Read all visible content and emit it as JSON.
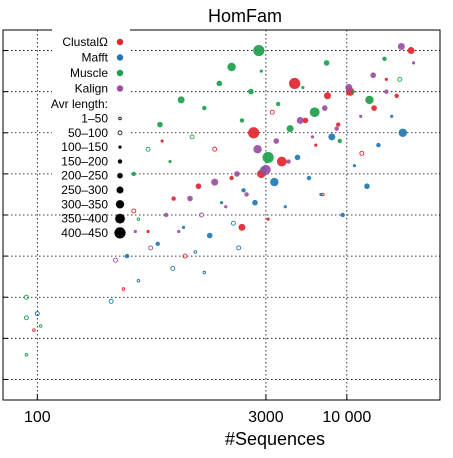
{
  "chart_data": {
    "type": "scatter",
    "title": "HomFam",
    "xlabel": "#Sequences",
    "ylabel": "",
    "x_scale": "log",
    "xlim": [
      60,
      40000
    ],
    "ylim": [
      0.5,
      9.5
    ],
    "x_ticks": [
      {
        "value": 100,
        "label": "100"
      },
      {
        "value": 3000,
        "label": "3000"
      },
      {
        "value": 10000,
        "label": "10 000"
      }
    ],
    "grid": true,
    "legend_placement": "top-left",
    "legend": {
      "methods": [
        {
          "name": "ClustalΩ",
          "color": "#e0262e"
        },
        {
          "name": "Mafft",
          "color": "#1f78b4"
        },
        {
          "name": "Muscle",
          "color": "#1aa14a"
        },
        {
          "name": "Kalign",
          "color": "#9b4ea0"
        }
      ],
      "size_title": "Avr length:",
      "size_bins": [
        "1–50",
        "50–100",
        "100–150",
        "150–200",
        "200–250",
        "250–300",
        "300–350",
        "350–400",
        "400–450"
      ]
    },
    "series": [
      {
        "name": "ClustalΩ",
        "color": "#e0262e",
        "points": [
          {
            "x": 95,
            "y": 2.2,
            "bin": 1
          },
          {
            "x": 360,
            "y": 3.2,
            "bin": 1
          },
          {
            "x": 420,
            "y": 5.1,
            "bin": 2
          },
          {
            "x": 520,
            "y": 4.6,
            "bin": 3
          },
          {
            "x": 640,
            "y": 6.8,
            "bin": 3
          },
          {
            "x": 760,
            "y": 5.4,
            "bin": 4
          },
          {
            "x": 900,
            "y": 4.0,
            "bin": 2
          },
          {
            "x": 1100,
            "y": 5.7,
            "bin": 5
          },
          {
            "x": 1400,
            "y": 6.6,
            "bin": 2
          },
          {
            "x": 1800,
            "y": 5.9,
            "bin": 4
          },
          {
            "x": 2100,
            "y": 4.7,
            "bin": 6
          },
          {
            "x": 2500,
            "y": 7.0,
            "bin": 9
          },
          {
            "x": 2800,
            "y": 6.0,
            "bin": 7
          },
          {
            "x": 3300,
            "y": 7.5,
            "bin": 2
          },
          {
            "x": 3800,
            "y": 6.3,
            "bin": 8
          },
          {
            "x": 4600,
            "y": 8.2,
            "bin": 9
          },
          {
            "x": 5400,
            "y": 7.3,
            "bin": 5
          },
          {
            "x": 6300,
            "y": 6.7,
            "bin": 3
          },
          {
            "x": 7500,
            "y": 7.9,
            "bin": 6
          },
          {
            "x": 8800,
            "y": 7.2,
            "bin": 4
          },
          {
            "x": 10500,
            "y": 8.0,
            "bin": 7
          },
          {
            "x": 12500,
            "y": 6.5,
            "bin": 2
          },
          {
            "x": 15000,
            "y": 7.6,
            "bin": 5
          },
          {
            "x": 18000,
            "y": 8.3,
            "bin": 3
          },
          {
            "x": 21000,
            "y": 7.9,
            "bin": 4
          },
          {
            "x": 26000,
            "y": 9.0,
            "bin": 6
          },
          {
            "x": 7000,
            "y": 5.5,
            "bin": 1
          },
          {
            "x": 3100,
            "y": 4.9,
            "bin": 3
          }
        ]
      },
      {
        "name": "Mafft",
        "color": "#1f78b4",
        "points": [
          {
            "x": 100,
            "y": 2.6,
            "bin": 2
          },
          {
            "x": 300,
            "y": 2.9,
            "bin": 2
          },
          {
            "x": 380,
            "y": 4.0,
            "bin": 4
          },
          {
            "x": 450,
            "y": 3.4,
            "bin": 1
          },
          {
            "x": 600,
            "y": 4.3,
            "bin": 4
          },
          {
            "x": 750,
            "y": 3.7,
            "bin": 2
          },
          {
            "x": 880,
            "y": 4.7,
            "bin": 3
          },
          {
            "x": 1050,
            "y": 4.1,
            "bin": 1
          },
          {
            "x": 1300,
            "y": 4.5,
            "bin": 5
          },
          {
            "x": 1550,
            "y": 5.3,
            "bin": 3
          },
          {
            "x": 1850,
            "y": 4.8,
            "bin": 2
          },
          {
            "x": 2150,
            "y": 5.6,
            "bin": 4
          },
          {
            "x": 2550,
            "y": 5.3,
            "bin": 5
          },
          {
            "x": 2900,
            "y": 6.1,
            "bin": 6
          },
          {
            "x": 3400,
            "y": 5.8,
            "bin": 7
          },
          {
            "x": 4000,
            "y": 5.2,
            "bin": 3
          },
          {
            "x": 4800,
            "y": 6.4,
            "bin": 5
          },
          {
            "x": 5700,
            "y": 5.9,
            "bin": 4
          },
          {
            "x": 6800,
            "y": 5.5,
            "bin": 3
          },
          {
            "x": 8000,
            "y": 6.9,
            "bin": 6
          },
          {
            "x": 9400,
            "y": 5.0,
            "bin": 4
          },
          {
            "x": 11200,
            "y": 6.2,
            "bin": 3
          },
          {
            "x": 13500,
            "y": 5.7,
            "bin": 5
          },
          {
            "x": 16000,
            "y": 6.7,
            "bin": 4
          },
          {
            "x": 19500,
            "y": 7.4,
            "bin": 3
          },
          {
            "x": 23000,
            "y": 7.0,
            "bin": 7
          },
          {
            "x": 2000,
            "y": 4.2,
            "bin": 2
          },
          {
            "x": 1200,
            "y": 3.6,
            "bin": 1
          }
        ]
      },
      {
        "name": "Muscle",
        "color": "#1aa14a",
        "points": [
          {
            "x": 85,
            "y": 3.0,
            "bin": 2
          },
          {
            "x": 85,
            "y": 2.5,
            "bin": 2
          },
          {
            "x": 85,
            "y": 1.6,
            "bin": 1
          },
          {
            "x": 105,
            "y": 2.3,
            "bin": 1
          },
          {
            "x": 330,
            "y": 5.7,
            "bin": 3
          },
          {
            "x": 420,
            "y": 6.0,
            "bin": 4
          },
          {
            "x": 520,
            "y": 6.6,
            "bin": 2
          },
          {
            "x": 620,
            "y": 7.2,
            "bin": 5
          },
          {
            "x": 720,
            "y": 6.3,
            "bin": 3
          },
          {
            "x": 850,
            "y": 7.8,
            "bin": 6
          },
          {
            "x": 1000,
            "y": 6.9,
            "bin": 2
          },
          {
            "x": 1200,
            "y": 7.6,
            "bin": 4
          },
          {
            "x": 1500,
            "y": 8.2,
            "bin": 5
          },
          {
            "x": 1800,
            "y": 8.6,
            "bin": 7
          },
          {
            "x": 2100,
            "y": 7.3,
            "bin": 4
          },
          {
            "x": 2400,
            "y": 8.0,
            "bin": 5
          },
          {
            "x": 2700,
            "y": 9.0,
            "bin": 9
          },
          {
            "x": 2800,
            "y": 8.5,
            "bin": 3
          },
          {
            "x": 3100,
            "y": 6.4,
            "bin": 9
          },
          {
            "x": 3600,
            "y": 7.7,
            "bin": 4
          },
          {
            "x": 4300,
            "y": 7.1,
            "bin": 6
          },
          {
            "x": 5200,
            "y": 8.1,
            "bin": 3
          },
          {
            "x": 6200,
            "y": 7.5,
            "bin": 8
          },
          {
            "x": 7400,
            "y": 8.7,
            "bin": 5
          },
          {
            "x": 9000,
            "y": 6.8,
            "bin": 4
          },
          {
            "x": 11000,
            "y": 8.0,
            "bin": 3
          },
          {
            "x": 14000,
            "y": 7.8,
            "bin": 7
          },
          {
            "x": 17500,
            "y": 8.8,
            "bin": 4
          },
          {
            "x": 22000,
            "y": 8.3,
            "bin": 2
          },
          {
            "x": 450,
            "y": 4.9,
            "bin": 1
          }
        ]
      },
      {
        "name": "Kalign",
        "color": "#9b4ea0",
        "points": [
          {
            "x": 320,
            "y": 3.9,
            "bin": 2
          },
          {
            "x": 430,
            "y": 4.6,
            "bin": 3
          },
          {
            "x": 540,
            "y": 4.2,
            "bin": 2
          },
          {
            "x": 680,
            "y": 5.0,
            "bin": 4
          },
          {
            "x": 820,
            "y": 4.6,
            "bin": 3
          },
          {
            "x": 970,
            "y": 5.4,
            "bin": 5
          },
          {
            "x": 1150,
            "y": 5.0,
            "bin": 2
          },
          {
            "x": 1400,
            "y": 5.8,
            "bin": 6
          },
          {
            "x": 1650,
            "y": 5.2,
            "bin": 3
          },
          {
            "x": 1950,
            "y": 6.0,
            "bin": 5
          },
          {
            "x": 2250,
            "y": 5.5,
            "bin": 4
          },
          {
            "x": 2650,
            "y": 6.6,
            "bin": 7
          },
          {
            "x": 3000,
            "y": 6.1,
            "bin": 8
          },
          {
            "x": 3500,
            "y": 6.8,
            "bin": 5
          },
          {
            "x": 4200,
            "y": 6.3,
            "bin": 4
          },
          {
            "x": 5000,
            "y": 7.3,
            "bin": 6
          },
          {
            "x": 6000,
            "y": 6.9,
            "bin": 3
          },
          {
            "x": 7200,
            "y": 7.6,
            "bin": 5
          },
          {
            "x": 8600,
            "y": 7.1,
            "bin": 4
          },
          {
            "x": 10300,
            "y": 8.1,
            "bin": 6
          },
          {
            "x": 12300,
            "y": 7.4,
            "bin": 3
          },
          {
            "x": 14800,
            "y": 8.4,
            "bin": 5
          },
          {
            "x": 18000,
            "y": 8.0,
            "bin": 4
          },
          {
            "x": 22500,
            "y": 9.1,
            "bin": 6
          },
          {
            "x": 27000,
            "y": 8.7,
            "bin": 3
          }
        ]
      }
    ]
  }
}
